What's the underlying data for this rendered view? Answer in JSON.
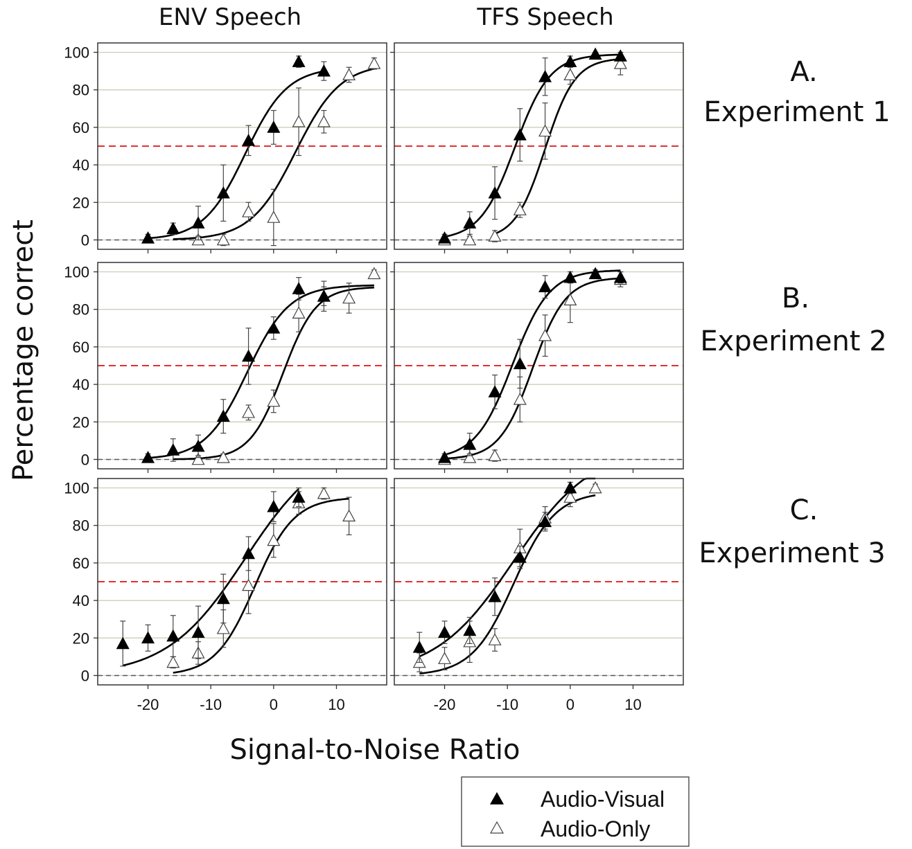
{
  "figure": {
    "column_titles": [
      "ENV Speech",
      "TFS Speech"
    ],
    "row_labels": [
      {
        "letter": "A.",
        "name": "Experiment 1"
      },
      {
        "letter": "B.",
        "name": "Experiment 2"
      },
      {
        "letter": "C.",
        "name": "Experiment 3"
      }
    ],
    "ylabel": "Percentage correct",
    "xlabel": "Signal-to-Noise Ratio",
    "legend": {
      "position": "bottom-right",
      "entries": [
        {
          "label": "Audio-Visual",
          "marker": "filled-triangle"
        },
        {
          "label": "Audio-Only",
          "marker": "open-triangle"
        }
      ]
    },
    "colors": {
      "threshold_line": "#e03030",
      "zero_line": "#555555",
      "grid": "#c8c8b4",
      "audio_visual": "#000000",
      "audio_only": "#ffffff"
    }
  },
  "chart_data": {
    "type": "scatter",
    "xlim": [
      -28,
      18
    ],
    "ylim": [
      -5,
      105
    ],
    "xticks": [
      -20,
      -10,
      0,
      10
    ],
    "yticks": [
      0,
      20,
      40,
      60,
      80,
      100
    ],
    "grid": true,
    "reference_lines": [
      {
        "y": 50,
        "style": "dashed",
        "color": "red"
      },
      {
        "y": 0,
        "style": "dashed",
        "color": "gray"
      }
    ],
    "panels": [
      {
        "row": 0,
        "col": 0,
        "av": {
          "x": [
            -20,
            -16,
            -12,
            -8,
            -4,
            0,
            4,
            8
          ],
          "y": [
            1,
            6,
            9,
            25,
            53,
            60,
            95,
            90
          ],
          "err": [
            2,
            3,
            9,
            15,
            8,
            9,
            3,
            5
          ],
          "fit": {
            "mid": -4.5,
            "slope": 0.3,
            "top": 92,
            "from": -20,
            "to": 8
          }
        },
        "ao": {
          "x": [
            -12,
            -8,
            -4,
            0,
            4,
            8,
            12,
            16
          ],
          "y": [
            0,
            0,
            15,
            12,
            63,
            63,
            88,
            94
          ],
          "err": [
            2,
            3,
            5,
            15,
            18,
            6,
            4,
            3
          ],
          "fit": {
            "mid": 3.5,
            "slope": 0.28,
            "top": 94,
            "from": -16,
            "to": 16
          }
        }
      },
      {
        "row": 0,
        "col": 1,
        "av": {
          "x": [
            -20,
            -16,
            -12,
            -8,
            -4,
            0,
            4,
            8
          ],
          "y": [
            1,
            9,
            25,
            56,
            87,
            95,
            99,
            98
          ],
          "err": [
            2,
            6,
            14,
            14,
            10,
            3,
            1,
            2
          ],
          "fit": {
            "mid": -8.8,
            "slope": 0.36,
            "top": 99,
            "from": -20,
            "to": 8
          }
        },
        "ao": {
          "x": [
            -20,
            -16,
            -12,
            -8,
            -4,
            0,
            8
          ],
          "y": [
            0,
            0,
            2,
            16,
            58,
            88,
            94
          ],
          "err": [
            2,
            2,
            3,
            4,
            15,
            5,
            6
          ],
          "fit": {
            "mid": -4,
            "slope": 0.42,
            "top": 97,
            "from": -12,
            "to": 8
          }
        }
      },
      {
        "row": 1,
        "col": 0,
        "av": {
          "x": [
            -20,
            -16,
            -12,
            -8,
            -4,
            0,
            4,
            8
          ],
          "y": [
            1,
            5,
            7,
            23,
            55,
            70,
            91,
            87
          ],
          "err": [
            2,
            6,
            6,
            9,
            15,
            6,
            6,
            8
          ],
          "fit": {
            "mid": -4.2,
            "slope": 0.3,
            "top": 93,
            "from": -20,
            "to": 16
          }
        },
        "ao": {
          "x": [
            -12,
            -8,
            -4,
            0,
            4,
            8,
            12,
            16
          ],
          "y": [
            0,
            1,
            25,
            31,
            78,
            87,
            86,
            99
          ],
          "err": [
            2,
            2,
            4,
            6,
            10,
            5,
            8,
            2
          ],
          "fit": {
            "mid": 1.5,
            "slope": 0.38,
            "top": 92,
            "from": -16,
            "to": 16
          }
        }
      },
      {
        "row": 1,
        "col": 1,
        "av": {
          "x": [
            -20,
            -16,
            -12,
            -8,
            -4,
            0,
            4,
            8
          ],
          "y": [
            1,
            8,
            36,
            51,
            92,
            97,
            99,
            97
          ],
          "err": [
            2,
            6,
            9,
            13,
            6,
            3,
            2,
            3
          ],
          "fit": {
            "mid": -9.2,
            "slope": 0.34,
            "top": 101,
            "from": -20,
            "to": 8
          }
        },
        "ao": {
          "x": [
            -20,
            -16,
            -12,
            -8,
            -4,
            0,
            8
          ],
          "y": [
            0,
            1,
            2,
            32,
            66,
            85,
            96
          ],
          "err": [
            2,
            2,
            3,
            12,
            11,
            12,
            4
          ],
          "fit": {
            "mid": -6,
            "slope": 0.38,
            "top": 97,
            "from": -20,
            "to": 8
          }
        }
      },
      {
        "row": 2,
        "col": 0,
        "av": {
          "x": [
            -24,
            -20,
            -16,
            -12,
            -8,
            -4,
            0,
            4
          ],
          "y": [
            17,
            20,
            21,
            23,
            41,
            65,
            90,
            95
          ],
          "err": [
            12,
            7,
            11,
            14,
            13,
            9,
            8,
            5
          ],
          "fit": {
            "mid": -4.5,
            "slope": 0.16,
            "top": 125,
            "from": -24,
            "to": 4
          }
        },
        "ao": {
          "x": [
            -16,
            -12,
            -8,
            -4,
            0,
            4,
            8,
            12
          ],
          "y": [
            7,
            12,
            25,
            48,
            72,
            92,
            97,
            85
          ],
          "err": [
            3,
            6,
            10,
            15,
            9,
            6,
            3,
            10
          ],
          "fit": {
            "mid": -3,
            "slope": 0.32,
            "top": 95,
            "from": -16,
            "to": 12
          }
        }
      },
      {
        "row": 2,
        "col": 1,
        "av": {
          "x": [
            -24,
            -20,
            -16,
            -12,
            -8,
            -4,
            0
          ],
          "y": [
            15,
            23,
            24,
            42,
            63,
            82,
            100
          ],
          "err": [
            8,
            6,
            7,
            10,
            6,
            5,
            3
          ],
          "fit": {
            "mid": -9,
            "slope": 0.16,
            "top": 122,
            "from": -24,
            "to": 4
          }
        },
        "ao": {
          "x": [
            -24,
            -20,
            -16,
            -12,
            -8,
            -4,
            0,
            4
          ],
          "y": [
            7,
            9,
            18,
            19,
            68,
            84,
            95,
            100
          ],
          "err": [
            5,
            6,
            11,
            6,
            10,
            6,
            5,
            2
          ],
          "fit": {
            "mid": -9,
            "slope": 0.3,
            "top": 98,
            "from": -24,
            "to": 4
          }
        }
      }
    ]
  }
}
